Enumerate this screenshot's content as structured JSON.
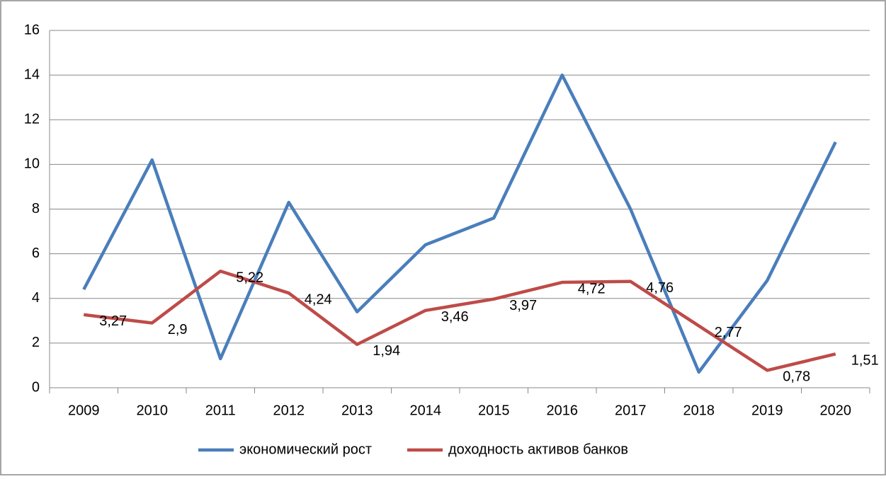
{
  "chart_data": {
    "type": "line",
    "categories": [
      "2009",
      "2010",
      "2011",
      "2012",
      "2013",
      "2014",
      "2015",
      "2016",
      "2017",
      "2018",
      "2019",
      "2020"
    ],
    "series": [
      {
        "name": "экономический рост",
        "color": "#4a7ebb",
        "values": [
          4.4,
          10.2,
          1.3,
          8.3,
          3.4,
          6.4,
          7.6,
          14.0,
          8.0,
          0.7,
          4.8,
          11.0
        ]
      },
      {
        "name": "доходность активов банков",
        "color": "#be4b48",
        "values": [
          3.27,
          2.9,
          5.22,
          4.24,
          1.94,
          3.46,
          3.97,
          4.72,
          4.76,
          2.77,
          0.78,
          1.51
        ],
        "value_labels": [
          "3,27",
          "2,9",
          "5,22",
          "4,24",
          "1,94",
          "3,46",
          "3,97",
          "4,72",
          "4,76",
          "2,77",
          "0,78",
          "1,51"
        ]
      }
    ],
    "ylim": [
      0,
      16
    ],
    "yticks": [
      0,
      2,
      4,
      6,
      8,
      10,
      12,
      14,
      16
    ],
    "grid": true,
    "legend": "bottom"
  }
}
